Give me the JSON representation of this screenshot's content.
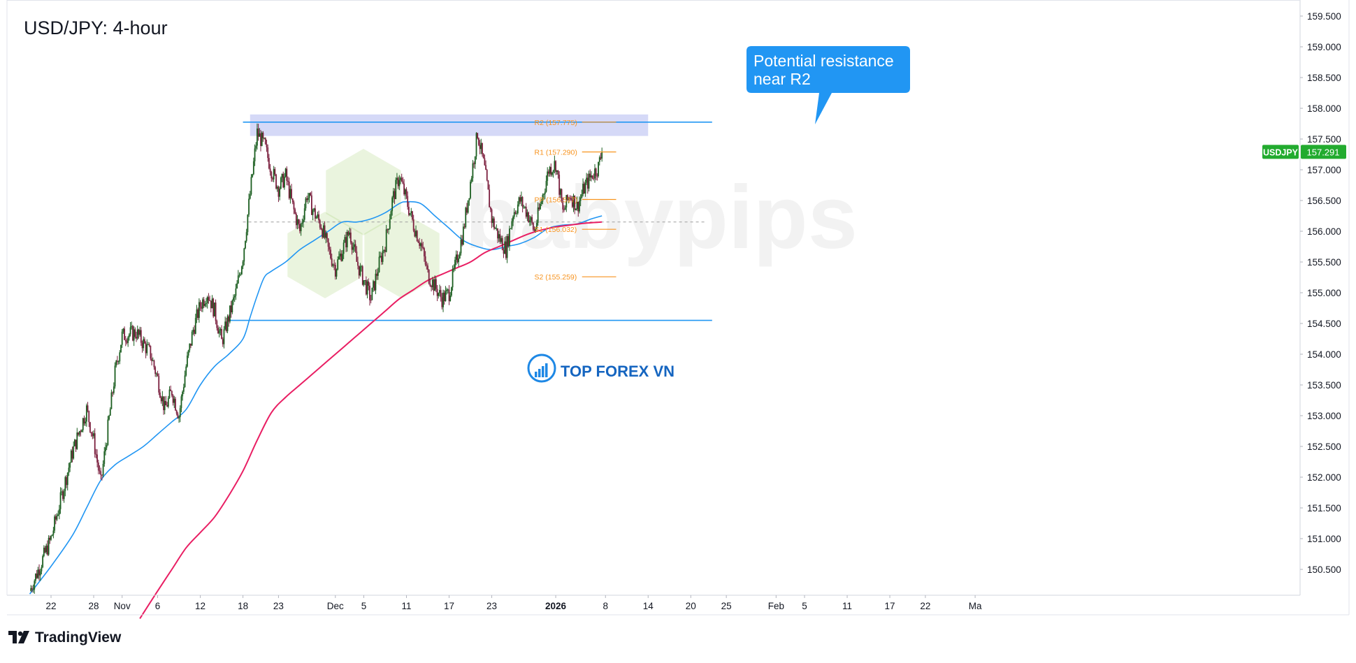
{
  "title": "USD/JPY: 4-hour",
  "annotation": "Potential resistance near R2",
  "annotation_lines": [
    "Potential resistance",
    "near R2"
  ],
  "symbol_tag": "USDJPY",
  "last_price_label": "157.291",
  "watermark_center": "babypips",
  "watermark_logo": "TOP FOREX VN",
  "branding": "TradingView",
  "colors": {
    "up_candle": "#1b5e20",
    "down_candle": "#7b1f3e",
    "ma_fast": "#2196f3",
    "ma_slow": "#e91e63",
    "lines": "#2196f3",
    "pivot_levels": "#f7931e",
    "zone": "#b3b9f0",
    "callout": "#2196f3",
    "tag": "#22ab2f"
  },
  "chart_data": {
    "type": "candlestick",
    "title": "USD/JPY: 4-hour",
    "ylim": [
      150.0,
      159.75
    ],
    "y_ticks": [
      "159.500",
      "159.000",
      "158.500",
      "158.000",
      "157.500",
      "157.000",
      "156.500",
      "156.000",
      "155.500",
      "155.000",
      "154.500",
      "154.000",
      "153.500",
      "153.000",
      "152.500",
      "152.000",
      "151.500",
      "151.000",
      "150.500"
    ],
    "x_ticks": [
      {
        "label": "22",
        "day": 0
      },
      {
        "label": "28",
        "day": 6
      },
      {
        "label": "Nov",
        "day": 10
      },
      {
        "label": "6",
        "day": 15
      },
      {
        "label": "12",
        "day": 21
      },
      {
        "label": "18",
        "day": 27
      },
      {
        "label": "23",
        "day": 32
      },
      {
        "label": "Dec",
        "day": 40
      },
      {
        "label": "5",
        "day": 44
      },
      {
        "label": "11",
        "day": 50
      },
      {
        "label": "17",
        "day": 56
      },
      {
        "label": "23",
        "day": 62
      },
      {
        "label": "2026",
        "day": 71,
        "bold": true
      },
      {
        "label": "8",
        "day": 78
      },
      {
        "label": "14",
        "day": 84
      },
      {
        "label": "20",
        "day": 90
      },
      {
        "label": "25",
        "day": 95
      },
      {
        "label": "Feb",
        "day": 102
      },
      {
        "label": "5",
        "day": 106
      },
      {
        "label": "11",
        "day": 112
      },
      {
        "label": "17",
        "day": 118
      },
      {
        "label": "22",
        "day": 123
      },
      {
        "label": "Ma",
        "day": 130
      }
    ],
    "price_path": [
      [
        -3,
        150.15
      ],
      [
        0,
        151.0
      ],
      [
        3,
        152.4
      ],
      [
        5,
        153.1
      ],
      [
        6,
        152.6
      ],
      [
        7,
        151.9
      ],
      [
        8,
        152.8
      ],
      [
        9,
        153.7
      ],
      [
        10,
        154.3
      ],
      [
        12,
        154.35
      ],
      [
        14,
        154.0
      ],
      [
        15,
        153.6
      ],
      [
        16,
        153.1
      ],
      [
        17,
        153.4
      ],
      [
        18,
        153.0
      ],
      [
        19,
        153.8
      ],
      [
        20,
        154.4
      ],
      [
        21,
        154.8
      ],
      [
        22,
        155.0
      ],
      [
        23,
        154.7
      ],
      [
        24,
        154.2
      ],
      [
        25,
        154.6
      ],
      [
        26,
        155.0
      ],
      [
        27,
        155.6
      ],
      [
        28,
        156.6
      ],
      [
        29,
        157.6
      ],
      [
        30,
        157.4
      ],
      [
        31,
        157.0
      ],
      [
        32,
        156.7
      ],
      [
        33,
        156.9
      ],
      [
        34,
        156.4
      ],
      [
        35,
        156.0
      ],
      [
        36,
        156.6
      ],
      [
        37,
        156.3
      ],
      [
        38,
        156.1
      ],
      [
        39,
        155.7
      ],
      [
        40,
        155.4
      ],
      [
        41,
        155.7
      ],
      [
        42,
        156.0
      ],
      [
        43,
        155.5
      ],
      [
        44,
        155.2
      ],
      [
        45,
        154.9
      ],
      [
        46,
        155.4
      ],
      [
        47,
        155.8
      ],
      [
        48,
        156.5
      ],
      [
        49,
        156.9
      ],
      [
        50,
        156.5
      ],
      [
        51,
        156.1
      ],
      [
        52,
        155.8
      ],
      [
        53,
        155.3
      ],
      [
        54,
        155.1
      ],
      [
        55,
        154.9
      ],
      [
        56,
        155.0
      ],
      [
        57,
        155.5
      ],
      [
        58,
        156.0
      ],
      [
        59,
        156.8
      ],
      [
        60,
        157.6
      ],
      [
        61,
        157.0
      ],
      [
        62,
        156.2
      ],
      [
        63,
        155.9
      ],
      [
        64,
        155.7
      ],
      [
        65,
        156.3
      ],
      [
        66,
        156.5
      ],
      [
        67,
        156.3
      ],
      [
        68,
        156.0
      ],
      [
        69,
        156.5
      ],
      [
        70,
        157.0
      ],
      [
        71,
        157.1
      ],
      [
        72,
        156.3
      ],
      [
        73,
        156.6
      ],
      [
        74,
        156.4
      ],
      [
        75,
        156.7
      ],
      [
        76,
        156.9
      ],
      [
        77,
        157.05
      ],
      [
        77.5,
        157.291
      ]
    ],
    "moving_average_fast": [
      [
        -3,
        150.1
      ],
      [
        0,
        150.55
      ],
      [
        3,
        151.05
      ],
      [
        5,
        151.5
      ],
      [
        7,
        151.95
      ],
      [
        9,
        152.2
      ],
      [
        11,
        152.35
      ],
      [
        13,
        152.5
      ],
      [
        15,
        152.7
      ],
      [
        17,
        152.9
      ],
      [
        19,
        153.1
      ],
      [
        21,
        153.5
      ],
      [
        23,
        153.8
      ],
      [
        25,
        154.0
      ],
      [
        27,
        154.25
      ],
      [
        28,
        154.6
      ],
      [
        29,
        154.95
      ],
      [
        30,
        155.25
      ],
      [
        31,
        155.35
      ],
      [
        33,
        155.5
      ],
      [
        35,
        155.7
      ],
      [
        37,
        155.85
      ],
      [
        39,
        156.0
      ],
      [
        41,
        156.15
      ],
      [
        43,
        156.15
      ],
      [
        45,
        156.2
      ],
      [
        47,
        156.3
      ],
      [
        49,
        156.45
      ],
      [
        50,
        156.48
      ],
      [
        52,
        156.45
      ],
      [
        54,
        156.25
      ],
      [
        56,
        156.05
      ],
      [
        58,
        155.85
      ],
      [
        60,
        155.75
      ],
      [
        62,
        155.7
      ],
      [
        64,
        155.75
      ],
      [
        66,
        155.8
      ],
      [
        68,
        155.9
      ],
      [
        70,
        156.05
      ],
      [
        72,
        156.1
      ],
      [
        74,
        156.12
      ],
      [
        76,
        156.2
      ],
      [
        77.5,
        156.25
      ]
    ],
    "moving_average_slow": [
      [
        12.5,
        149.7
      ],
      [
        15,
        150.15
      ],
      [
        17,
        150.5
      ],
      [
        19,
        150.85
      ],
      [
        21,
        151.1
      ],
      [
        23,
        151.35
      ],
      [
        25,
        151.7
      ],
      [
        27,
        152.1
      ],
      [
        29,
        152.6
      ],
      [
        31,
        153.05
      ],
      [
        33,
        153.3
      ],
      [
        35,
        153.5
      ],
      [
        37,
        153.7
      ],
      [
        39,
        153.9
      ],
      [
        41,
        154.1
      ],
      [
        43,
        154.3
      ],
      [
        45,
        154.5
      ],
      [
        47,
        154.7
      ],
      [
        49,
        154.9
      ],
      [
        51,
        155.05
      ],
      [
        53,
        155.2
      ],
      [
        55,
        155.3
      ],
      [
        57,
        155.4
      ],
      [
        59,
        155.5
      ],
      [
        61,
        155.65
      ],
      [
        63,
        155.75
      ],
      [
        65,
        155.85
      ],
      [
        67,
        155.95
      ],
      [
        69,
        156.02
      ],
      [
        71,
        156.07
      ],
      [
        73,
        156.1
      ],
      [
        75,
        156.13
      ],
      [
        77.5,
        156.15
      ]
    ],
    "horizontal_lines": [
      {
        "name": "upper-range-line",
        "price": 157.775,
        "from_day": 27,
        "to_day": 93
      },
      {
        "name": "lower-range-line",
        "price": 154.55,
        "from_day": 25,
        "to_day": 93
      }
    ],
    "mid_dashed_line": {
      "price": 156.15,
      "from_day": 27,
      "to_day": 92
    },
    "resistance_zone": {
      "price_top": 157.9,
      "price_bottom": 157.55,
      "from_day": 28,
      "to_day": 84
    },
    "pivot_levels": [
      {
        "label": "R2 (157.775)",
        "price": 157.775
      },
      {
        "label": "R1 (157.290)",
        "price": 157.29
      },
      {
        "label": "PP (156.517)",
        "price": 156.517
      },
      {
        "label": "S1 (156.032)",
        "price": 156.032
      },
      {
        "label": "S2 (155.259)",
        "price": 155.259
      }
    ],
    "pivot_range": {
      "from_day": 73,
      "to_day": 78
    }
  }
}
